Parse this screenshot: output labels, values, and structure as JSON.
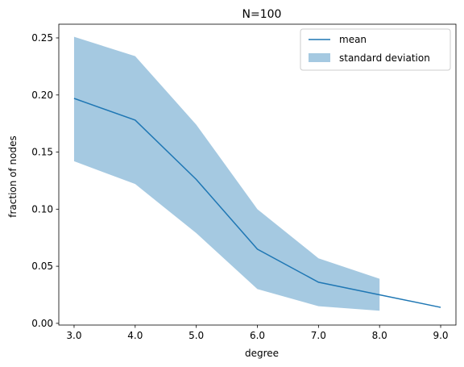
{
  "chart_data": {
    "type": "line",
    "title": "N=100",
    "xlabel": "degree",
    "ylabel": "fraction of nodes",
    "xlim": [
      2.75,
      9.25
    ],
    "ylim": [
      -0.0015,
      0.262
    ],
    "xticks": [
      3.0,
      4.0,
      5.0,
      6.0,
      7.0,
      8.0,
      9.0
    ],
    "xtick_labels": [
      "3.0",
      "4.0",
      "5.0",
      "6.0",
      "7.0",
      "8.0",
      "9.0"
    ],
    "yticks": [
      0.0,
      0.05,
      0.1,
      0.15,
      0.2,
      0.25
    ],
    "ytick_labels": [
      "0.00",
      "0.05",
      "0.10",
      "0.15",
      "0.20",
      "0.25"
    ],
    "grid": false,
    "legend_position": "top-right",
    "series": [
      {
        "name": "mean",
        "kind": "line",
        "color": "#1f77b4",
        "x": [
          3,
          4,
          5,
          6,
          7,
          8,
          9
        ],
        "y": [
          0.197,
          0.178,
          0.126,
          0.065,
          0.036,
          0.025,
          0.014
        ]
      },
      {
        "name": "standard deviation",
        "kind": "band",
        "color": "#1f77b4",
        "opacity": 0.4,
        "x": [
          3,
          4,
          5,
          6,
          7,
          8
        ],
        "lower": [
          0.142,
          0.122,
          0.079,
          0.03,
          0.015,
          0.011
        ],
        "upper": [
          0.251,
          0.234,
          0.174,
          0.1,
          0.057,
          0.039
        ]
      }
    ]
  }
}
